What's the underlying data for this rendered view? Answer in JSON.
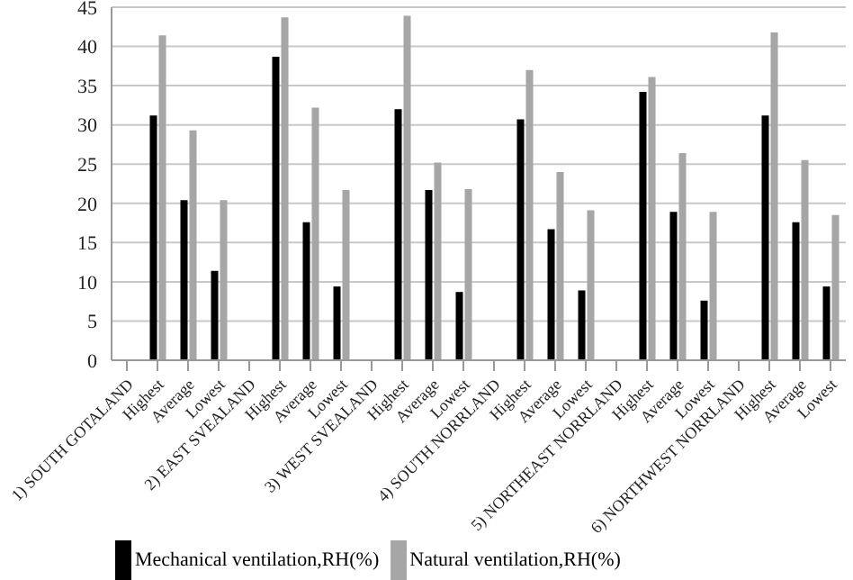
{
  "chart_data": {
    "type": "bar",
    "categories": [
      "1) SOUTH GOTALAND",
      "Highest",
      "Average",
      "Lowest",
      "2) EAST SVEALAND",
      "Highest",
      "Average",
      "Lowest",
      "3) WEST SVEALAND",
      "Highest",
      "Average",
      "Lowest",
      "4) SOUTH NORRLAND",
      "Highest",
      "Average",
      "Lowest",
      "5) NORTHEAST NORRLAND",
      "Highest",
      "Average",
      "Lowest",
      "6) NORTHWEST NORRLAND",
      "Highest",
      "Average",
      "Lowest"
    ],
    "series": [
      {
        "name": "Mechanical ventilation,RH(%)",
        "color": "#000000",
        "values": [
          null,
          31.2,
          20.4,
          11.4,
          null,
          38.7,
          17.6,
          9.4,
          null,
          32.0,
          21.7,
          8.7,
          null,
          30.7,
          16.7,
          8.9,
          null,
          34.2,
          18.9,
          7.6,
          null,
          31.2,
          17.6,
          9.4
        ]
      },
      {
        "name": "Natural ventilation,RH(%)",
        "color": "#a6a6a6",
        "values": [
          null,
          41.4,
          29.3,
          20.4,
          null,
          43.7,
          32.2,
          21.7,
          null,
          43.9,
          25.2,
          21.8,
          null,
          37.0,
          24.0,
          19.1,
          null,
          36.1,
          26.4,
          18.9,
          null,
          41.8,
          25.5,
          18.5
        ]
      }
    ],
    "ylim": [
      0,
      45
    ],
    "yticks": [
      0,
      5,
      10,
      15,
      20,
      25,
      30,
      35,
      40,
      45
    ],
    "grid": "y",
    "legend": "bottom left"
  }
}
